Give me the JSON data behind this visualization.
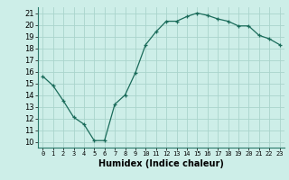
{
  "x": [
    0,
    1,
    2,
    3,
    4,
    5,
    6,
    7,
    8,
    9,
    10,
    11,
    12,
    13,
    14,
    15,
    16,
    17,
    18,
    19,
    20,
    21,
    22,
    23
  ],
  "y": [
    15.6,
    14.8,
    13.5,
    12.1,
    11.5,
    10.1,
    10.1,
    13.2,
    14.0,
    15.9,
    18.3,
    19.4,
    20.3,
    20.3,
    20.7,
    21.0,
    20.8,
    20.5,
    20.3,
    19.9,
    19.9,
    19.1,
    18.8,
    18.3
  ],
  "xlabel": "Humidex (Indice chaleur)",
  "ylabel_ticks": [
    10,
    11,
    12,
    13,
    14,
    15,
    16,
    17,
    18,
    19,
    20,
    21
  ],
  "ylim": [
    9.5,
    21.5
  ],
  "xlim": [
    -0.5,
    23.5
  ],
  "bg_color": "#cdeee8",
  "line_color": "#1a6b5a",
  "grid_color": "#aad4cc",
  "spine_color": "#2a7a6a"
}
